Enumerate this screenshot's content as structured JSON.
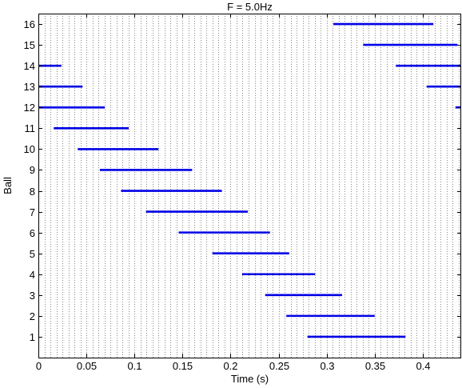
{
  "chart_data": {
    "type": "timeline",
    "title": "F = 5.0Hz",
    "xlabel": "Time (s)",
    "ylabel": "Ball",
    "xlim": [
      0,
      0.44
    ],
    "ylim": [
      0,
      16.5
    ],
    "x_ticks": [
      0,
      0.05,
      0.1,
      0.15,
      0.2,
      0.25,
      0.3,
      0.35,
      0.4
    ],
    "x_tick_labels": [
      "0",
      "0.05",
      "0.1",
      "0.15",
      "0.2",
      "0.25",
      "0.3",
      "0.35",
      "0.4"
    ],
    "y_ticks": [
      1,
      2,
      3,
      4,
      5,
      6,
      7,
      8,
      9,
      10,
      11,
      12,
      13,
      14,
      15,
      16
    ],
    "y_tick_labels": [
      "1",
      "2",
      "3",
      "4",
      "5",
      "6",
      "7",
      "8",
      "9",
      "10",
      "11",
      "12",
      "13",
      "14",
      "15",
      "16"
    ],
    "vertical_grid_step": 0.00625,
    "grid_style": "dotted",
    "series_color": "#0000e6",
    "segments": [
      {
        "ball": 1,
        "start": 0.28,
        "end": 0.382
      },
      {
        "ball": 2,
        "start": 0.258,
        "end": 0.35
      },
      {
        "ball": 3,
        "start": 0.236,
        "end": 0.316
      },
      {
        "ball": 4,
        "start": 0.212,
        "end": 0.288
      },
      {
        "ball": 5,
        "start": 0.181,
        "end": 0.261
      },
      {
        "ball": 6,
        "start": 0.146,
        "end": 0.241
      },
      {
        "ball": 7,
        "start": 0.112,
        "end": 0.218
      },
      {
        "ball": 8,
        "start": 0.086,
        "end": 0.191
      },
      {
        "ball": 9,
        "start": 0.064,
        "end": 0.16
      },
      {
        "ball": 10,
        "start": 0.041,
        "end": 0.125
      },
      {
        "ball": 11,
        "start": 0.016,
        "end": 0.094
      },
      {
        "ball": 12,
        "start": 0,
        "end": 0.069
      },
      {
        "ball": 12,
        "start": 0.434,
        "end": 0.44
      },
      {
        "ball": 13,
        "start": 0,
        "end": 0.046
      },
      {
        "ball": 13,
        "start": 0.404,
        "end": 0.44
      },
      {
        "ball": 14,
        "start": 0,
        "end": 0.024
      },
      {
        "ball": 14,
        "start": 0.372,
        "end": 0.44
      },
      {
        "ball": 15,
        "start": 0.338,
        "end": 0.436
      },
      {
        "ball": 16,
        "start": 0.307,
        "end": 0.411
      }
    ]
  }
}
